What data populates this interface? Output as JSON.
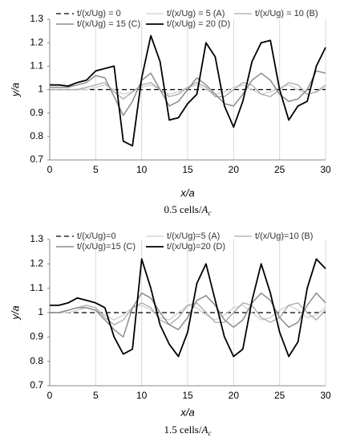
{
  "chart_data": [
    {
      "type": "line",
      "x": [
        0,
        1,
        2,
        3,
        4,
        5,
        6,
        7,
        8,
        9,
        10,
        11,
        12,
        13,
        14,
        15,
        16,
        17,
        18,
        19,
        20,
        21,
        22,
        23,
        24,
        25,
        26,
        27,
        28,
        29,
        30
      ],
      "series": [
        {
          "name": "t/(x/Ug) = 0",
          "color": "#000000",
          "width": 1.3,
          "line_style": "dashed",
          "values": [
            1,
            1,
            1,
            1,
            1,
            1,
            1,
            1,
            1,
            1,
            1,
            1,
            1,
            1,
            1,
            1,
            1,
            1,
            1,
            1,
            1,
            1,
            1,
            1,
            1,
            1,
            1,
            1,
            1,
            1,
            1
          ]
        },
        {
          "name": "t/(x/Ug) = 5 (A)",
          "color": "#cfcfcf",
          "width": 1.3,
          "line_style": "solid",
          "values": [
            1,
            1,
            1,
            1,
            1,
            1.01,
            1.02,
            1,
            0.98,
            0.99,
            1.01,
            1.02,
            1,
            0.98,
            0.99,
            1.01,
            1.02,
            1,
            0.98,
            0.99,
            1.01,
            1.02,
            1,
            0.98,
            0.99,
            1.01,
            1.02,
            1,
            0.98,
            0.99,
            1.01
          ]
        },
        {
          "name": "t/(x/Ug) = 10 (B)",
          "color": "#a8a8a8",
          "width": 1.3,
          "line_style": "solid",
          "values": [
            1,
            1,
            1,
            1,
            1.01,
            1.02,
            1.03,
            0.99,
            0.96,
            0.99,
            1.02,
            1.03,
            1,
            0.97,
            0.98,
            1.01,
            1.03,
            1.01,
            0.97,
            0.97,
            1.0,
            1.03,
            1.02,
            0.98,
            0.97,
            1.0,
            1.03,
            1.02,
            0.98,
            0.99,
            1.02
          ]
        },
        {
          "name": "t/(x/Ug) = 15 (C)",
          "color": "#8c8c8c",
          "width": 1.5,
          "line_style": "solid",
          "values": [
            1.01,
            1.01,
            1.01,
            1.02,
            1.03,
            1.06,
            1.05,
            0.97,
            0.89,
            0.95,
            1.04,
            1.07,
            1.0,
            0.93,
            0.95,
            1.0,
            1.05,
            1.02,
            0.98,
            0.94,
            0.93,
            0.98,
            1.04,
            1.07,
            1.04,
            0.98,
            0.95,
            0.96,
            1.0,
            1.08,
            1.07
          ]
        },
        {
          "name": "t/(x/Ug) = 20 (D)",
          "color": "#000000",
          "width": 1.8,
          "line_style": "solid",
          "values": [
            1.02,
            1.02,
            1.015,
            1.03,
            1.04,
            1.08,
            1.09,
            1.1,
            0.78,
            0.76,
            1.05,
            1.23,
            1.12,
            0.87,
            0.88,
            0.94,
            0.98,
            1.2,
            1.14,
            0.93,
            0.84,
            0.95,
            1.12,
            1.2,
            1.21,
            1.0,
            0.87,
            0.93,
            0.95,
            1.1,
            1.18
          ]
        }
      ],
      "xlabel": "x/a",
      "ylabel": "y/a",
      "caption": {
        "text": "0.5 cells/",
        "symbol": "A",
        "sub": "c"
      },
      "xlim": [
        0,
        30
      ],
      "xticks": [
        0,
        5,
        10,
        15,
        20,
        25,
        30
      ],
      "ylim": [
        0.7,
        1.3
      ],
      "yticks": [
        0.7,
        0.8,
        0.9,
        1,
        1.1,
        1.2,
        1.3
      ],
      "grid": "x"
    },
    {
      "type": "line",
      "x": [
        0,
        1,
        2,
        3,
        4,
        5,
        6,
        7,
        8,
        9,
        10,
        11,
        12,
        13,
        14,
        15,
        16,
        17,
        18,
        19,
        20,
        21,
        22,
        23,
        24,
        25,
        26,
        27,
        28,
        29,
        30
      ],
      "series": [
        {
          "name": "t/(x/Ug)=0",
          "color": "#000000",
          "width": 1.3,
          "line_style": "dashed",
          "values": [
            1,
            1,
            1,
            1,
            1,
            1,
            1,
            1,
            1,
            1,
            1,
            1,
            1,
            1,
            1,
            1,
            1,
            1,
            1,
            1,
            1,
            1,
            1,
            1,
            1,
            1,
            1,
            1,
            1,
            1,
            1
          ]
        },
        {
          "name": "t/(x/Ug)=5 (A)",
          "color": "#cfcfcf",
          "width": 1.3,
          "line_style": "solid",
          "values": [
            1,
            1,
            1,
            1.01,
            1.02,
            1.01,
            0.99,
            0.97,
            0.99,
            1.02,
            1.03,
            1.01,
            0.98,
            0.97,
            1.0,
            1.03,
            1.02,
            0.99,
            0.97,
            0.99,
            1.02,
            1.03,
            1.0,
            0.97,
            0.98,
            1.01,
            1.03,
            1.01,
            0.98,
            0.99,
            1.02
          ]
        },
        {
          "name": "t/(x/Ug)=10 (B)",
          "color": "#a8a8a8",
          "width": 1.3,
          "line_style": "solid",
          "values": [
            1,
            1,
            1.01,
            1.02,
            1.03,
            1.02,
            0.98,
            0.95,
            0.97,
            1.02,
            1.04,
            1.02,
            0.97,
            0.95,
            0.98,
            1.03,
            1.04,
            1.0,
            0.96,
            0.96,
            1.0,
            1.04,
            1.03,
            0.98,
            0.96,
            0.98,
            1.03,
            1.04,
            1.0,
            0.97,
            1.01
          ]
        },
        {
          "name": "t/(x/Ug)=15 (C)",
          "color": "#8c8c8c",
          "width": 1.5,
          "line_style": "solid",
          "values": [
            1.0,
            1.0,
            1.01,
            1.02,
            1.02,
            1.01,
            0.97,
            0.93,
            0.9,
            1.02,
            1.08,
            1.06,
            1.0,
            0.95,
            0.93,
            0.98,
            1.05,
            1.07,
            1.03,
            0.97,
            0.94,
            0.97,
            1.04,
            1.08,
            1.05,
            0.98,
            0.94,
            0.96,
            1.03,
            1.08,
            1.04
          ]
        },
        {
          "name": "t/(x/Ug)=20 (D)",
          "color": "#000000",
          "width": 1.8,
          "line_style": "solid",
          "values": [
            1.03,
            1.03,
            1.04,
            1.06,
            1.05,
            1.04,
            1.02,
            0.9,
            0.83,
            0.85,
            1.22,
            1.1,
            0.95,
            0.87,
            0.82,
            0.92,
            1.12,
            1.2,
            1.05,
            0.9,
            0.82,
            0.85,
            1.05,
            1.2,
            1.08,
            0.92,
            0.82,
            0.88,
            1.1,
            1.22,
            1.18
          ]
        }
      ],
      "xlabel": "x/a",
      "ylabel": "y/a",
      "caption": {
        "text": "1.5 cells/",
        "symbol": "A",
        "sub": "c"
      },
      "xlim": [
        0,
        30
      ],
      "xticks": [
        0,
        5,
        10,
        15,
        20,
        25,
        30
      ],
      "ylim": [
        0.7,
        1.3
      ],
      "yticks": [
        0.7,
        0.8,
        0.9,
        1,
        1.1,
        1.2,
        1.3
      ],
      "grid": "x"
    }
  ]
}
